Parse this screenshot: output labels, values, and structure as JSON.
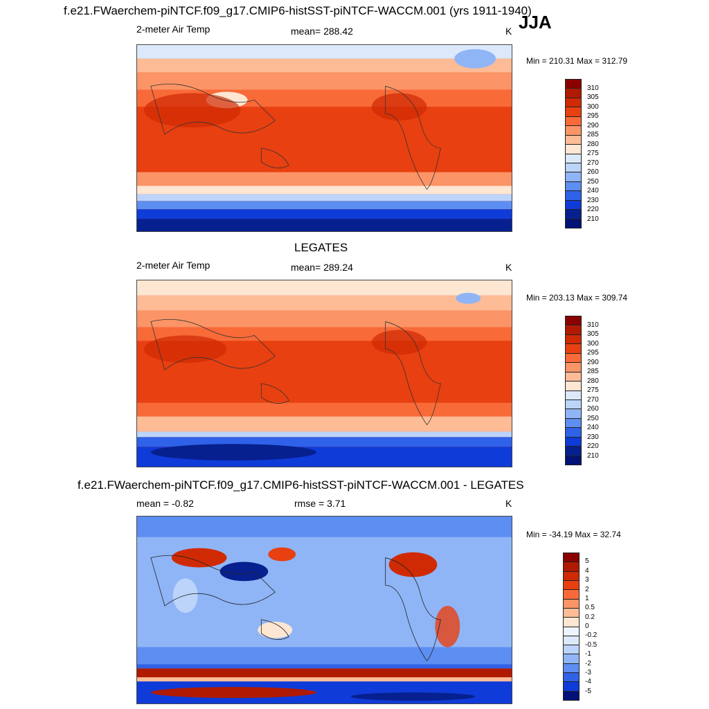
{
  "figure": {
    "title": "f.e21.FWaerchem-piNTCF.f09_g17.CMIP6-histSST-piNTCF-WACCM.001 (yrs 1911-1940)",
    "season": "JJA"
  },
  "panels": [
    {
      "variable": "2-meter Air Temp",
      "stat_label": "mean= 288.42",
      "units": "K",
      "minmax": "Min = 210.31 Max = 312.79"
    },
    {
      "title": "LEGATES",
      "variable": "2-meter Air Temp",
      "stat_label": "mean= 289.24",
      "units": "K",
      "minmax": "Min = 203.13 Max = 309.74"
    },
    {
      "title": "f.e21.FWaerchem-piNTCF.f09_g17.CMIP6-histSST-piNTCF-WACCM.001 - LEGATES",
      "variable": "mean =  -0.82",
      "stat_label": "rmse =   3.71",
      "units": "K",
      "minmax": "Min = -34.19 Max =  32.74"
    }
  ],
  "colorbars": {
    "temperature": {
      "labels": [
        "310",
        "305",
        "300",
        "295",
        "290",
        "285",
        "280",
        "275",
        "270",
        "260",
        "250",
        "240",
        "230",
        "220",
        "210"
      ],
      "colors": [
        "#8b0000",
        "#b01a00",
        "#d02a04",
        "#e84010",
        "#f86a38",
        "#fb9466",
        "#fdbb96",
        "#fde6d2",
        "#dbe9fb",
        "#bcd4fa",
        "#8fb5f7",
        "#5d8ef1",
        "#2f62e8",
        "#0f3bd8",
        "#06208f",
        "#031276"
      ]
    },
    "difference": {
      "labels": [
        "5",
        "4",
        "3",
        "2",
        "1",
        "0.5",
        "0.2",
        "0",
        "-0.2",
        "-0.5",
        "-1",
        "-2",
        "-3",
        "-4",
        "-5"
      ],
      "colors": [
        "#8b0000",
        "#b01a00",
        "#d02a04",
        "#e84010",
        "#f86a38",
        "#fb9466",
        "#fdbb96",
        "#fde6d2",
        "#eef4fd",
        "#dbe9fb",
        "#bcd4fa",
        "#8fb5f7",
        "#5d8ef1",
        "#2f62e8",
        "#0f3bd8",
        "#031276"
      ]
    }
  }
}
